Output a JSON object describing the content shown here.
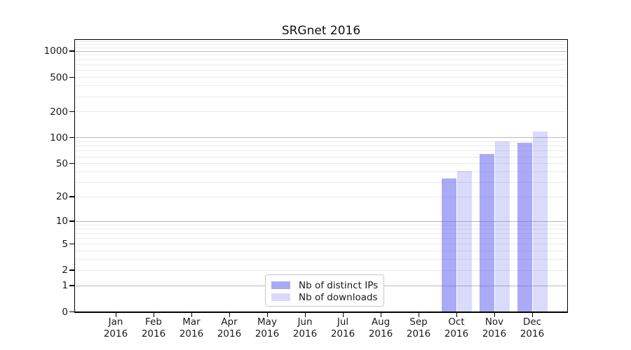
{
  "chart_data": {
    "type": "bar",
    "title": "SRGnet 2016",
    "x_categories": [
      "Jan",
      "Feb",
      "Mar",
      "Apr",
      "May",
      "Jun",
      "Jul",
      "Aug",
      "Sep",
      "Oct",
      "Nov",
      "Dec"
    ],
    "x_year_label": "2016",
    "series": [
      {
        "name": "Nb of distinct IPs",
        "color": "rgba(85,85,238,0.5)",
        "swatch_color": "#aaaaf4",
        "values": [
          0,
          0,
          0,
          0,
          0,
          0,
          0,
          0,
          0,
          33,
          64,
          87
        ]
      },
      {
        "name": "Nb of downloads",
        "color": "rgba(85,85,238,0.22)",
        "swatch_color": "#d9d9fa",
        "values": [
          0,
          0,
          0,
          0,
          0,
          0,
          0,
          0,
          0,
          41,
          90,
          117
        ]
      }
    ],
    "y_axis": {
      "scale": "log1p",
      "tick_labels": [
        0,
        1,
        2,
        5,
        10,
        20,
        50,
        100,
        200,
        500,
        1000
      ],
      "major_gridlines": [
        1,
        10,
        100,
        1000
      ],
      "minor_gridlines": [
        2,
        3,
        4,
        5,
        6,
        7,
        8,
        9,
        20,
        30,
        40,
        50,
        60,
        70,
        80,
        90,
        200,
        300,
        400,
        500,
        600,
        700,
        800,
        900,
        1100,
        1200,
        1300
      ],
      "range_max_display": 1350
    },
    "legend_position": "bottom-center",
    "grid": true,
    "colors": {
      "major_grid": "#b9b9b9",
      "minor_grid": "#ebebeb",
      "axis": "#000000",
      "text": "#1a1a1a"
    }
  }
}
